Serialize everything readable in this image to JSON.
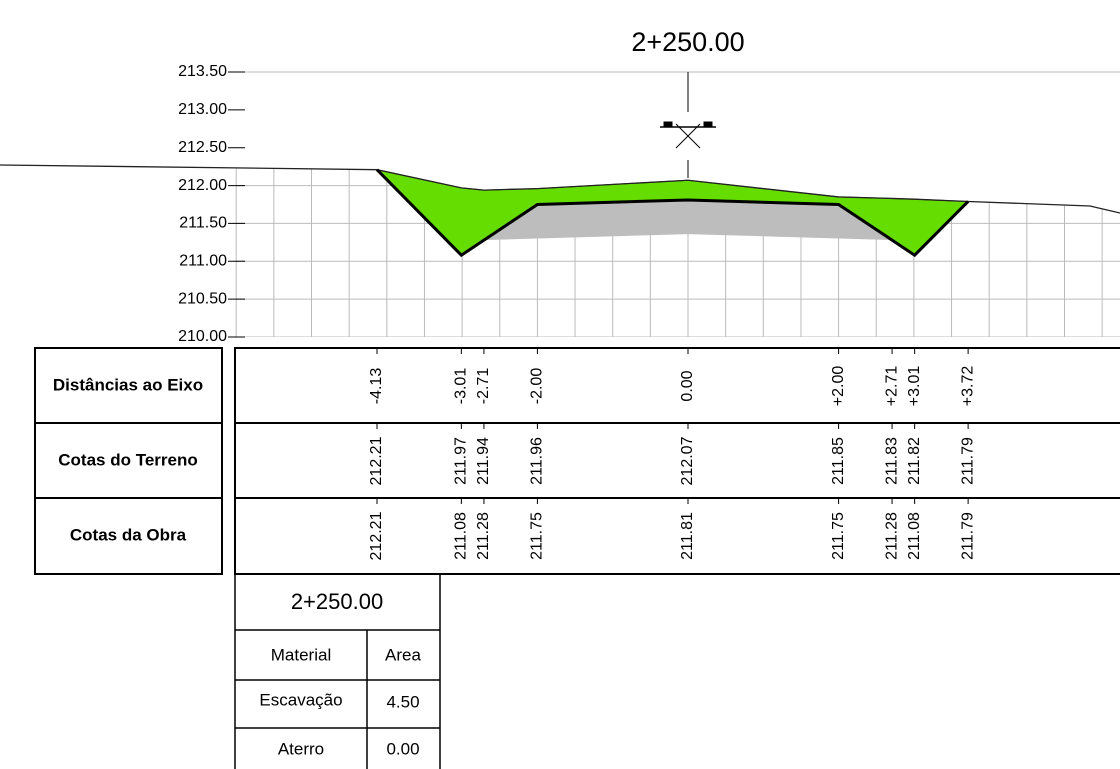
{
  "title": "2+250.00",
  "yticks": [
    {
      "value": 213.5,
      "label": "213.50"
    },
    {
      "value": 213,
      "label": "213.00"
    },
    {
      "value": 212.5,
      "label": "212.50"
    },
    {
      "value": 212,
      "label": "212.00"
    },
    {
      "value": 211.5,
      "label": "211.50"
    },
    {
      "value": 211,
      "label": "211.00"
    },
    {
      "value": 210.5,
      "label": "210.50"
    },
    {
      "value": 210,
      "label": "210.00"
    }
  ],
  "rows": {
    "labels": [
      "Distâncias ao Eixo",
      "Cotas do Terreno",
      "Cotas da Obra"
    ]
  },
  "points": [
    {
      "offset": {
        "value": -4.13,
        "label": "-4.13"
      },
      "terrain": 212.21,
      "design": 212.21
    },
    {
      "offset": {
        "value": -3.01,
        "label": "-3.01"
      },
      "terrain": 211.97,
      "design": 211.08
    },
    {
      "offset": {
        "value": -2.71,
        "label": "-2.71"
      },
      "terrain": 211.94,
      "design": 211.28
    },
    {
      "offset": {
        "value": -2.0,
        "label": "-2.00"
      },
      "terrain": 211.96,
      "design": 211.75
    },
    {
      "offset": {
        "value": 0,
        "label": "0.00"
      },
      "terrain": 212.07,
      "design": 211.81
    },
    {
      "offset": {
        "value": 2.0,
        "label": "+2.00"
      },
      "terrain": 211.85,
      "design": 211.75
    },
    {
      "offset": {
        "value": 2.71,
        "label": "+2.71"
      },
      "terrain": 211.83,
      "design": 211.28
    },
    {
      "offset": {
        "value": 3.01,
        "label": "+3.01"
      },
      "terrain": 211.82,
      "design": 211.08
    },
    {
      "offset": {
        "value": 3.72,
        "label": "+3.72"
      },
      "terrain": 211.79,
      "design": 211.79
    }
  ],
  "summary": {
    "title": "2+250.00",
    "headers": [
      "Material",
      "Area"
    ],
    "rows": [
      [
        "Escavação",
        "4.50"
      ],
      [
        "Aterro",
        "0.00"
      ]
    ]
  }
}
